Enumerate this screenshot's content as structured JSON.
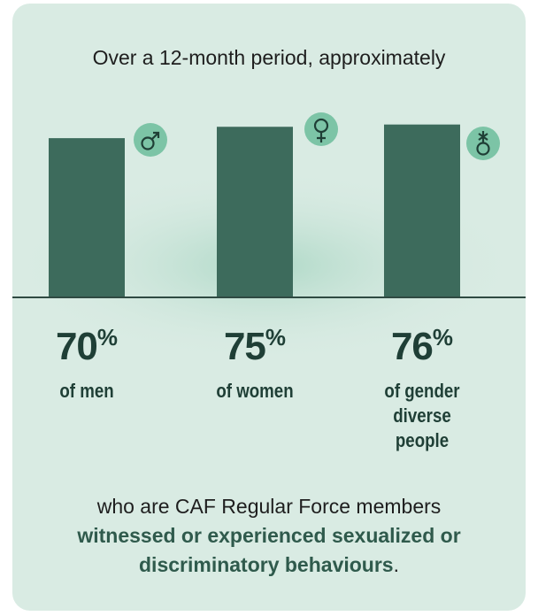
{
  "chart_data": {
    "type": "bar",
    "title": "Over a 12-month period, approximately",
    "categories": [
      "of men",
      "of women",
      "of gender diverse people"
    ],
    "values": [
      70,
      75,
      76
    ],
    "value_labels": [
      "70%",
      "75%",
      "76%"
    ],
    "color": "#3d6b5c",
    "ylim": [
      0,
      100
    ],
    "caption": {
      "text": "who are CAF Regular Force members",
      "emphasis": "witnessed or experienced sexualized or discriminatory behaviours",
      "end": "."
    }
  }
}
